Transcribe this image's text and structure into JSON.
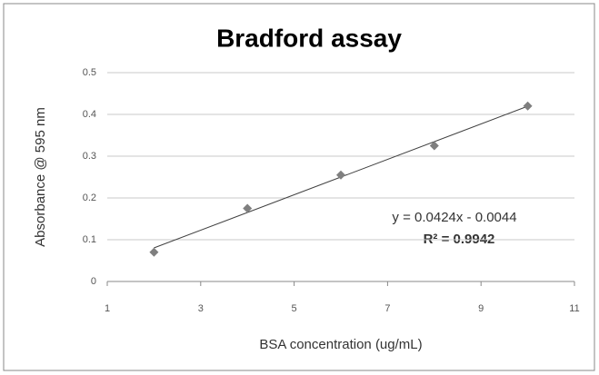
{
  "chart_data": {
    "type": "scatter",
    "title": "Bradford assay",
    "x_label": "BSA concentration (ug/mL)",
    "y_label": "Absorbance @ 595 nm",
    "series": [
      {
        "name": "Absorbance",
        "color": "#7f7f7f",
        "x": [
          2,
          4,
          6,
          8,
          10
        ],
        "values": [
          0.07,
          0.175,
          0.255,
          0.325,
          0.42
        ]
      }
    ],
    "xlim": [
      1,
      11
    ],
    "xticks": [
      1,
      3,
      5,
      7,
      9,
      11
    ],
    "ylim": [
      0,
      0.5
    ],
    "yticks": [
      0,
      0.1,
      0.2,
      0.3,
      0.4,
      0.5
    ],
    "grid": true,
    "trendline": {
      "slope": 0.0424,
      "intercept": -0.0044,
      "color": "#404040"
    },
    "annotations": [
      "y = 0.0424x - 0.0044",
      "R² = 0.9942"
    ]
  }
}
